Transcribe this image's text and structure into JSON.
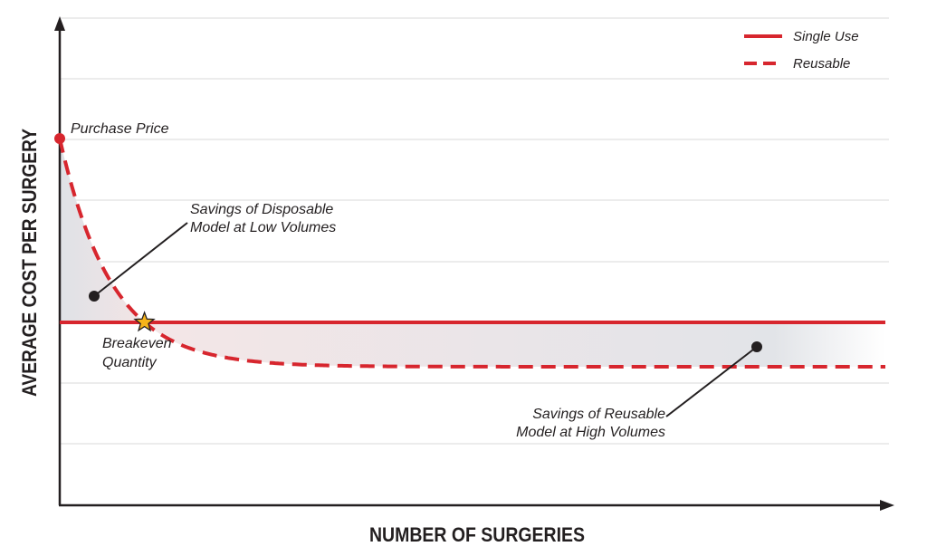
{
  "chart_data": {
    "type": "line",
    "xlabel": "NUMBER OF SURGERIES",
    "ylabel": "AVERAGE COST PER SURGERY",
    "grid": true,
    "legend_position": "top-right",
    "series": [
      {
        "name": "Single Use",
        "style": "solid",
        "color": "#d7262e"
      },
      {
        "name": "Reusable",
        "style": "dashed",
        "color": "#d7262e"
      }
    ],
    "annotations": {
      "purchase_price": "Purchase Price",
      "savings_low_line1": "Savings of Disposable",
      "savings_low_line2": "Model at Low Volumes",
      "breakeven_line1": "Breakeven",
      "breakeven_line2": "Quantity",
      "savings_high_line1": "Savings of Reusable",
      "savings_high_line2": "Model at High Volumes"
    },
    "colors": {
      "line": "#d7262e",
      "axis": "#231f20",
      "grid": "#d9d9d9",
      "shade": "#e3e5e8",
      "star": "#f6b41a"
    }
  }
}
